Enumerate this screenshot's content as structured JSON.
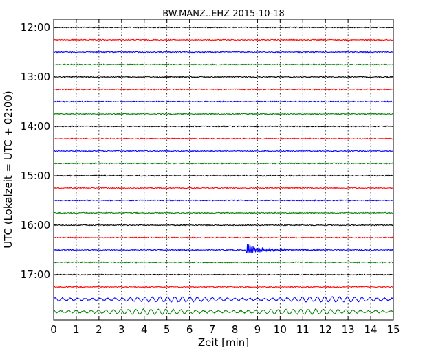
{
  "chart_data": {
    "type": "line",
    "title": "BW.MANZ..EHZ 2015-10-18",
    "xlabel": "Zeit  [min]",
    "ylabel": "UTC (Lokalzeit = UTC + 02:00)",
    "xlim": [
      0,
      15
    ],
    "x_ticks": [
      "0",
      "1",
      "2",
      "3",
      "4",
      "5",
      "6",
      "7",
      "8",
      "9",
      "10",
      "11",
      "12",
      "13",
      "14",
      "15"
    ],
    "y_ticks": [
      "12:00",
      "13:00",
      "14:00",
      "15:00",
      "16:00",
      "17:00"
    ],
    "grid": true,
    "colors": [
      "#000000",
      "#ff0000",
      "#0000ff",
      "#008000"
    ],
    "traces": [
      {
        "start": "12:00",
        "color": "#000000",
        "activity": "noise"
      },
      {
        "start": "12:15",
        "color": "#ff0000",
        "activity": "noise"
      },
      {
        "start": "12:30",
        "color": "#0000ff",
        "activity": "noise"
      },
      {
        "start": "12:45",
        "color": "#008000",
        "activity": "noise"
      },
      {
        "start": "13:00",
        "color": "#000000",
        "activity": "noise"
      },
      {
        "start": "13:15",
        "color": "#ff0000",
        "activity": "noise"
      },
      {
        "start": "13:30",
        "color": "#0000ff",
        "activity": "noise"
      },
      {
        "start": "13:45",
        "color": "#008000",
        "activity": "noise"
      },
      {
        "start": "14:00",
        "color": "#000000",
        "activity": "noise"
      },
      {
        "start": "14:15",
        "color": "#ff0000",
        "activity": "noise"
      },
      {
        "start": "14:30",
        "color": "#0000ff",
        "activity": "noise"
      },
      {
        "start": "14:45",
        "color": "#008000",
        "activity": "noise"
      },
      {
        "start": "15:00",
        "color": "#000000",
        "activity": "noise"
      },
      {
        "start": "15:15",
        "color": "#ff0000",
        "activity": "noise"
      },
      {
        "start": "15:30",
        "color": "#0000ff",
        "activity": "noise"
      },
      {
        "start": "15:45",
        "color": "#008000",
        "activity": "noise"
      },
      {
        "start": "16:00",
        "color": "#000000",
        "activity": "noise"
      },
      {
        "start": "16:15",
        "color": "#ff0000",
        "activity": "noise"
      },
      {
        "start": "16:30",
        "color": "#0000ff",
        "activity": "event",
        "event_onset_min": 8.5
      },
      {
        "start": "16:45",
        "color": "#008000",
        "activity": "noise"
      },
      {
        "start": "17:00",
        "color": "#000000",
        "activity": "noise"
      },
      {
        "start": "17:15",
        "color": "#ff0000",
        "activity": "noise"
      },
      {
        "start": "17:30",
        "color": "#0000ff",
        "activity": "wave"
      },
      {
        "start": "17:45",
        "color": "#008000",
        "activity": "wave"
      }
    ]
  }
}
